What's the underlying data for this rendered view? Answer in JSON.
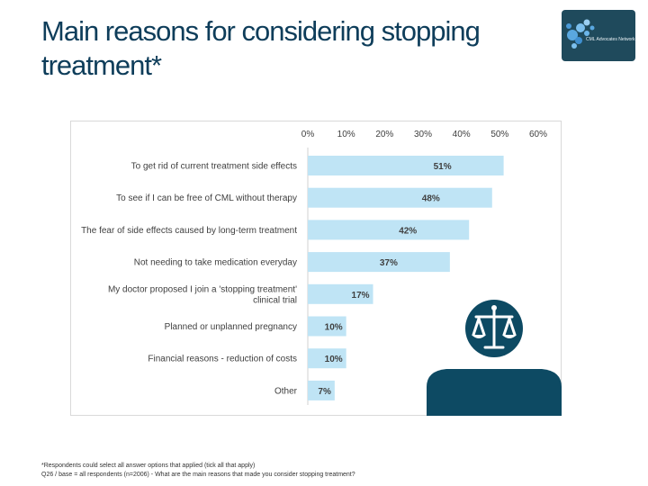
{
  "slide": {
    "title": "Main reasons for considering stopping treatment*",
    "footnote_1": "*Respondents could select all answer options that applied (tick all that apply)",
    "footnote_2": "Q26 / base = all respondents (n=2006) - What are the main reasons that made you consider stopping treatment?"
  },
  "logo": {
    "text": "CML Advocates Network",
    "icon": "blue-dots-logo"
  },
  "figure_icon": "judge-scales-person-icon",
  "colors": {
    "title": "#0e3d5a",
    "bar": "#bfe4f5",
    "figure": "#0d4a63",
    "logo_bg": "#1f4a5c"
  },
  "chart_data": {
    "type": "bar",
    "orientation": "horizontal",
    "title": "",
    "xlabel": "",
    "ylabel": "",
    "xlim": [
      0,
      60
    ],
    "x_axis_position": "top",
    "ticks": [
      "0%",
      "10%",
      "20%",
      "30%",
      "40%",
      "50%",
      "60%"
    ],
    "tick_values": [
      0,
      10,
      20,
      30,
      40,
      50,
      60
    ],
    "grid": false,
    "categories": [
      [
        "To get rid of current treatment side effects"
      ],
      [
        "To see if I can be free of CML without therapy"
      ],
      [
        "The fear of side effects caused by long-term treatment"
      ],
      [
        "Not needing to take medication everyday"
      ],
      [
        "My doctor proposed I join a 'stopping treatment'",
        "clinical trial"
      ],
      [
        "Planned or unplanned pregnancy"
      ],
      [
        "Financial reasons - reduction of costs"
      ],
      [
        "Other"
      ]
    ],
    "values": [
      51,
      48,
      42,
      37,
      17,
      10,
      10,
      7
    ],
    "data_labels": [
      "51%",
      "48%",
      "42%",
      "37%",
      "17%",
      "10%",
      "10%",
      "7%"
    ]
  }
}
